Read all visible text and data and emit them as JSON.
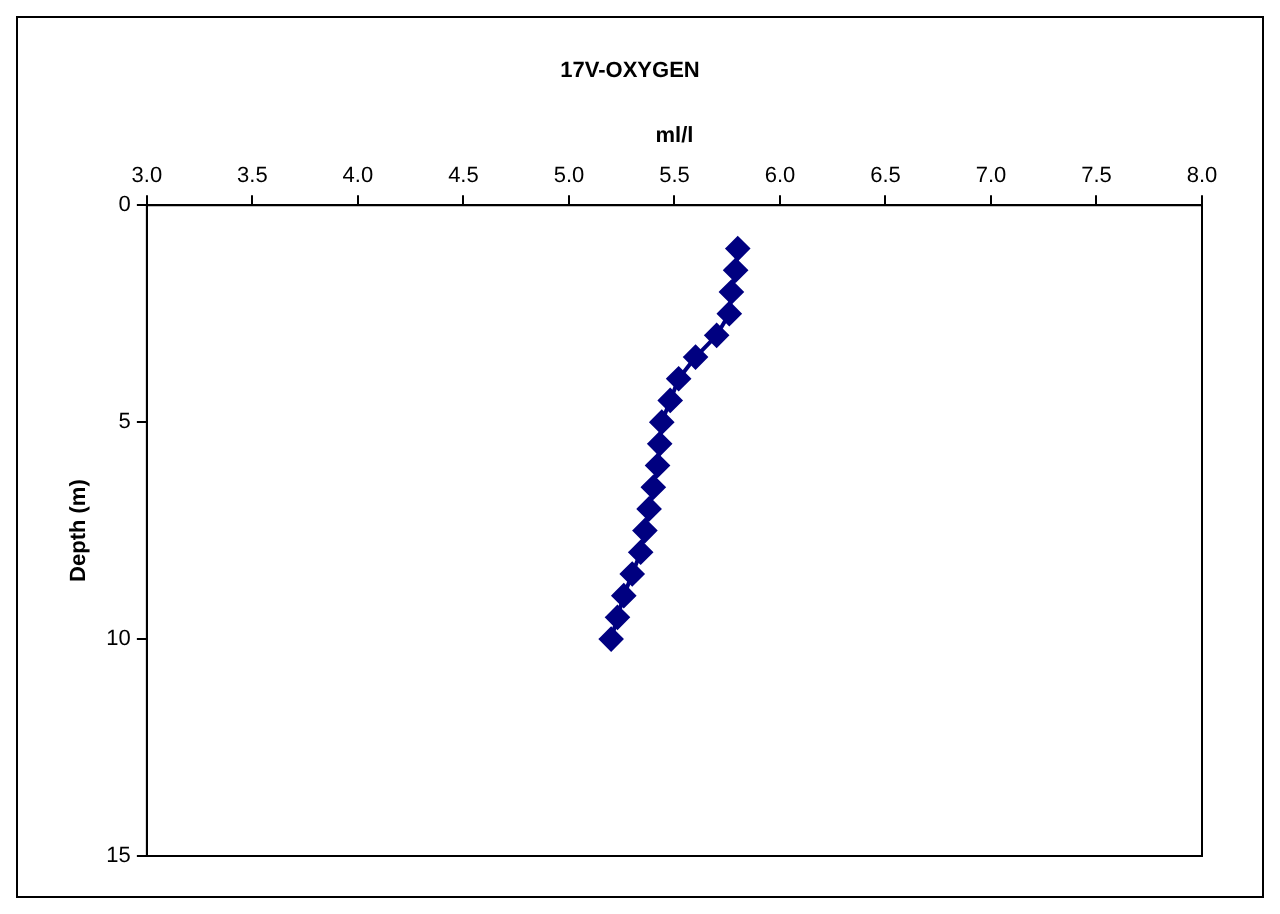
{
  "chart_data": {
    "type": "line",
    "title": "17V-OXYGEN",
    "xlabel": "ml/l",
    "ylabel": "Depth (m)",
    "xlim": [
      3.0,
      8.0
    ],
    "xticks": [
      {
        "value": 3,
        "label": "3.0"
      },
      {
        "value": 3.5,
        "label": "3.5"
      },
      {
        "value": 4,
        "label": "4.0"
      },
      {
        "value": 4.5,
        "label": "4.5"
      },
      {
        "value": 5,
        "label": "5.0"
      },
      {
        "value": 5.5,
        "label": "5.5"
      },
      {
        "value": 6,
        "label": "6.0"
      },
      {
        "value": 6.5,
        "label": "6.5"
      },
      {
        "value": 7,
        "label": "7.0"
      },
      {
        "value": 7.5,
        "label": "7.5"
      },
      {
        "value": 8,
        "label": "8.0"
      }
    ],
    "ylim": [
      15,
      0
    ],
    "yticks": [
      0,
      5,
      10,
      15
    ],
    "grid": false,
    "legend": false,
    "marker": "diamond",
    "line_style": "solid",
    "series": [
      {
        "color": "#000080",
        "x": [
          5.8,
          5.79,
          5.77,
          5.76,
          5.7,
          5.6,
          5.52,
          5.48,
          5.44,
          5.43,
          5.42,
          5.4,
          5.38,
          5.36,
          5.34,
          5.3,
          5.26,
          5.23,
          5.2
        ],
        "values": [
          1,
          1.5,
          2,
          2.5,
          3,
          3.5,
          4,
          4.5,
          5,
          5.5,
          6,
          6.5,
          7,
          7.5,
          8,
          8.5,
          9,
          9.5,
          10
        ]
      }
    ]
  }
}
